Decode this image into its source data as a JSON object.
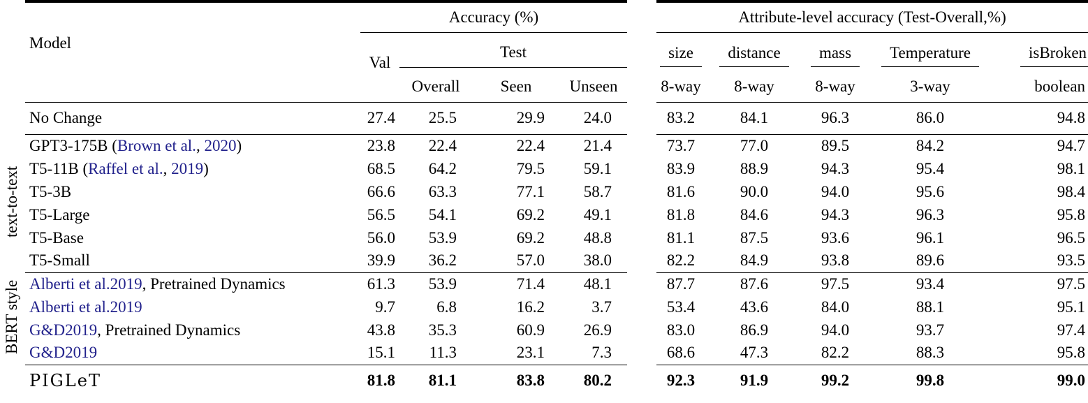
{
  "header": {
    "model": "Model",
    "accuracy_group": "Accuracy (%)",
    "attribute_group": "Attribute-level accuracy (Test-Overall,%)",
    "val": "Val",
    "test": "Test",
    "test_cols": [
      "Overall",
      "Seen",
      "Unseen"
    ],
    "attr_cols": [
      {
        "name": "size",
        "sub": "8-way"
      },
      {
        "name": "distance",
        "sub": "8-way"
      },
      {
        "name": "mass",
        "sub": "8-way"
      },
      {
        "name": "Temperature",
        "sub": "3-way"
      },
      {
        "name": "isBroken",
        "sub": "boolean"
      }
    ]
  },
  "side_labels": {
    "text_to_text": "text-to-text",
    "bert_style": "BERT style"
  },
  "colors": {
    "citation": "#22228c",
    "text": "#000000",
    "rule": "#000000"
  },
  "rows": [
    {
      "label_parts": [
        {
          "text": "No Change",
          "cite": false
        }
      ],
      "acc": [
        "27.4",
        "25.5",
        "29.9",
        "24.0"
      ],
      "attr": [
        "83.2",
        "84.1",
        "96.3",
        "86.0",
        "94.8"
      ],
      "rule_below": true,
      "bold": false,
      "logo": false
    },
    {
      "label_parts": [
        {
          "text": "GPT3-175B (",
          "cite": false
        },
        {
          "text": "Brown et al.",
          "cite": true
        },
        {
          "text": ", ",
          "cite": false
        },
        {
          "text": "2020",
          "cite": true
        },
        {
          "text": ")",
          "cite": false
        }
      ],
      "acc": [
        "23.8",
        "22.4",
        "22.4",
        "21.4"
      ],
      "attr": [
        "73.7",
        "77.0",
        "89.5",
        "84.2",
        "94.7"
      ],
      "rule_below": false,
      "bold": false,
      "logo": false
    },
    {
      "label_parts": [
        {
          "text": "T5-11B (",
          "cite": false
        },
        {
          "text": "Raffel et al.",
          "cite": true
        },
        {
          "text": ", ",
          "cite": false
        },
        {
          "text": "2019",
          "cite": true
        },
        {
          "text": ")",
          "cite": false
        }
      ],
      "acc": [
        "68.5",
        "64.2",
        "79.5",
        "59.1"
      ],
      "attr": [
        "83.9",
        "88.9",
        "94.3",
        "95.4",
        "98.1"
      ],
      "rule_below": false,
      "bold": false,
      "logo": false
    },
    {
      "label_parts": [
        {
          "text": "T5-3B",
          "cite": false
        }
      ],
      "acc": [
        "66.6",
        "63.3",
        "77.1",
        "58.7"
      ],
      "attr": [
        "81.6",
        "90.0",
        "94.0",
        "95.6",
        "98.4"
      ],
      "rule_below": false,
      "bold": false,
      "logo": false
    },
    {
      "label_parts": [
        {
          "text": "T5-Large",
          "cite": false
        }
      ],
      "acc": [
        "56.5",
        "54.1",
        "69.2",
        "49.1"
      ],
      "attr": [
        "81.8",
        "84.6",
        "94.3",
        "96.3",
        "95.8"
      ],
      "rule_below": false,
      "bold": false,
      "logo": false
    },
    {
      "label_parts": [
        {
          "text": "T5-Base",
          "cite": false
        }
      ],
      "acc": [
        "56.0",
        "53.9",
        "69.2",
        "48.8"
      ],
      "attr": [
        "81.1",
        "87.5",
        "93.6",
        "96.1",
        "96.5"
      ],
      "rule_below": false,
      "bold": false,
      "logo": false
    },
    {
      "label_parts": [
        {
          "text": "T5-Small",
          "cite": false
        }
      ],
      "acc": [
        "39.9",
        "36.2",
        "57.0",
        "38.0"
      ],
      "attr": [
        "82.2",
        "84.9",
        "93.8",
        "89.6",
        "93.5"
      ],
      "rule_below": true,
      "bold": false,
      "logo": false
    },
    {
      "label_parts": [
        {
          "text": "Alberti et al.2019",
          "cite": true
        },
        {
          "text": ", Pretrained Dynamics",
          "cite": false
        }
      ],
      "acc": [
        "61.3",
        "53.9",
        "71.4",
        "48.1"
      ],
      "attr": [
        "87.7",
        "87.6",
        "97.5",
        "93.4",
        "97.5"
      ],
      "rule_below": false,
      "bold": false,
      "logo": false
    },
    {
      "label_parts": [
        {
          "text": "Alberti et al.2019",
          "cite": true
        }
      ],
      "acc": [
        "9.7",
        "6.8",
        "16.2",
        "3.7"
      ],
      "attr": [
        "53.4",
        "43.6",
        "84.0",
        "88.1",
        "95.1"
      ],
      "rule_below": false,
      "bold": false,
      "logo": false
    },
    {
      "label_parts": [
        {
          "text": "G&D2019",
          "cite": true
        },
        {
          "text": ", Pretrained Dynamics",
          "cite": false
        }
      ],
      "acc": [
        "43.8",
        "35.3",
        "60.9",
        "26.9"
      ],
      "attr": [
        "83.0",
        "86.9",
        "94.0",
        "93.7",
        "97.4"
      ],
      "rule_below": false,
      "bold": false,
      "logo": false
    },
    {
      "label_parts": [
        {
          "text": "G&D2019",
          "cite": true
        }
      ],
      "acc": [
        "15.1",
        "11.3",
        "23.1",
        "7.3"
      ],
      "attr": [
        "68.6",
        "47.3",
        "82.2",
        "88.3",
        "95.8"
      ],
      "rule_below": true,
      "bold": false,
      "logo": false
    },
    {
      "label_parts": [
        {
          "text": "PIGLeT",
          "cite": false
        }
      ],
      "acc": [
        "81.8",
        "81.1",
        "83.8",
        "80.2"
      ],
      "attr": [
        "92.3",
        "91.9",
        "99.2",
        "99.8",
        "99.0"
      ],
      "rule_below": false,
      "bold": true,
      "logo": true
    }
  ]
}
